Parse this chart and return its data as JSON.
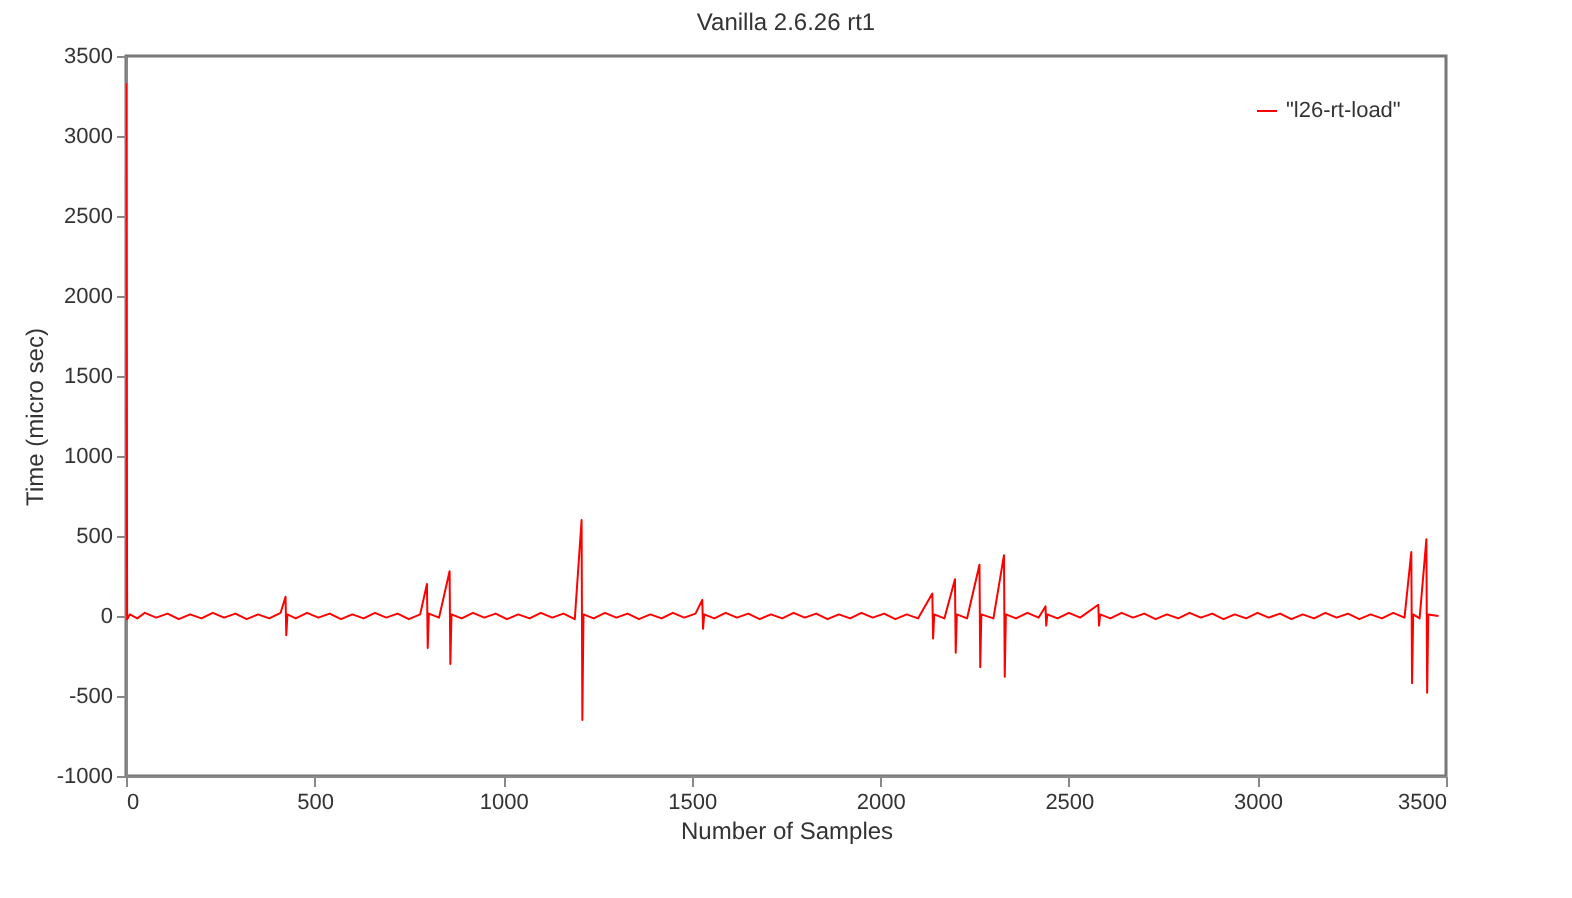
{
  "chart_data": {
    "type": "line",
    "title": "Vanilla 2.6.26 rt1",
    "xlabel": "Number of Samples",
    "ylabel": "Time (micro sec)",
    "xlim": [
      0,
      3500
    ],
    "xticks": [
      0,
      500,
      1000,
      1500,
      2000,
      2500,
      3000,
      3500
    ],
    "ylim": [
      -1000,
      3500
    ],
    "yticks": [
      -1000,
      -500,
      0,
      500,
      1000,
      1500,
      2000,
      2500,
      3000,
      3500
    ],
    "grid": false,
    "legend": "top right",
    "line_style": "solid",
    "marker": "none",
    "x": [
      0,
      3,
      10,
      30,
      50,
      80,
      110,
      140,
      170,
      200,
      230,
      260,
      290,
      320,
      350,
      380,
      410,
      423,
      425,
      428,
      450,
      480,
      510,
      540,
      570,
      600,
      630,
      660,
      690,
      720,
      750,
      780,
      798,
      800,
      803,
      830,
      858,
      860,
      863,
      890,
      920,
      950,
      980,
      1010,
      1040,
      1070,
      1100,
      1130,
      1160,
      1190,
      1208,
      1210,
      1213,
      1240,
      1270,
      1300,
      1330,
      1360,
      1390,
      1420,
      1450,
      1480,
      1510,
      1528,
      1530,
      1533,
      1560,
      1590,
      1620,
      1650,
      1680,
      1710,
      1740,
      1770,
      1800,
      1830,
      1860,
      1890,
      1920,
      1950,
      1980,
      2010,
      2040,
      2070,
      2100,
      2138,
      2140,
      2143,
      2170,
      2198,
      2200,
      2203,
      2230,
      2263,
      2265,
      2268,
      2300,
      2328,
      2330,
      2333,
      2360,
      2390,
      2420,
      2438,
      2440,
      2443,
      2470,
      2500,
      2530,
      2578,
      2580,
      2583,
      2610,
      2640,
      2670,
      2700,
      2730,
      2760,
      2790,
      2820,
      2850,
      2880,
      2910,
      2940,
      2970,
      3000,
      3030,
      3060,
      3090,
      3120,
      3150,
      3180,
      3210,
      3240,
      3270,
      3300,
      3330,
      3360,
      3390,
      3408,
      3410,
      3413,
      3430,
      3448,
      3450,
      3453,
      3480
    ],
    "series": [
      {
        "name": "\"l26-rt-load\"",
        "color": "#ff0000",
        "values": [
          3330,
          -20,
          10,
          -15,
          20,
          -10,
          15,
          -20,
          10,
          -15,
          20,
          -10,
          15,
          -20,
          10,
          -15,
          20,
          120,
          -120,
          10,
          -15,
          20,
          -10,
          15,
          -20,
          10,
          -15,
          20,
          -10,
          15,
          -20,
          10,
          200,
          -200,
          15,
          -10,
          280,
          -300,
          10,
          -15,
          20,
          -10,
          15,
          -20,
          10,
          -15,
          20,
          -10,
          15,
          -20,
          600,
          -650,
          10,
          -15,
          20,
          -10,
          15,
          -20,
          10,
          -15,
          20,
          -10,
          15,
          100,
          -80,
          10,
          -15,
          20,
          -10,
          15,
          -20,
          10,
          -15,
          20,
          -10,
          15,
          -20,
          10,
          -15,
          20,
          -10,
          15,
          -20,
          10,
          -15,
          140,
          -140,
          10,
          -15,
          230,
          -230,
          10,
          -15,
          320,
          -320,
          10,
          -15,
          380,
          -380,
          10,
          -15,
          20,
          -10,
          60,
          -60,
          10,
          -15,
          20,
          -10,
          70,
          -60,
          10,
          -15,
          20,
          -10,
          15,
          -20,
          10,
          -15,
          20,
          -10,
          15,
          -20,
          10,
          -15,
          20,
          -10,
          15,
          -20,
          10,
          -15,
          20,
          -10,
          15,
          -20,
          10,
          -15,
          20,
          -10,
          400,
          -420,
          10,
          -15,
          480,
          -480,
          10,
          0
        ]
      }
    ]
  }
}
